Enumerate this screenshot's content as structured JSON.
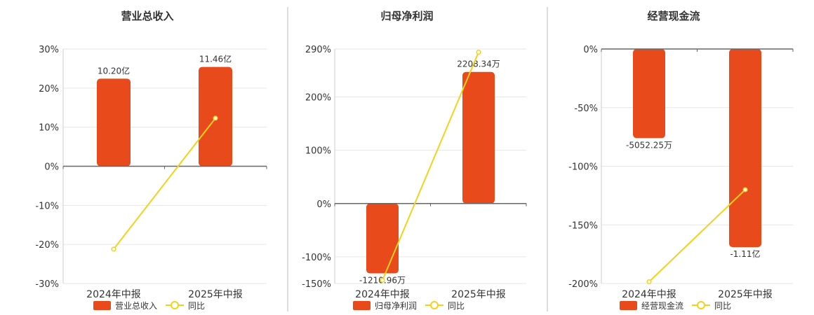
{
  "colors": {
    "bar": "#E84A1C",
    "line": "#F2D21B",
    "axis": "#666666",
    "grid": "#E6E6E6",
    "text": "#333333",
    "divider": "#BBBBBB"
  },
  "chart_data": [
    {
      "type": "bar",
      "title": "营业总收入",
      "categories": [
        "2024年中报",
        "2025年中报"
      ],
      "ylim": [
        -30,
        30
      ],
      "yticks": [
        30,
        20,
        10,
        0,
        -10,
        -20,
        -30
      ],
      "tick_labels": [
        "30%",
        "20%",
        "10%",
        "0%",
        "-10%",
        "-20%",
        "-30%"
      ],
      "bar_scaled": [
        22.4,
        25.4
      ],
      "yoy": [
        -21.2,
        12.3
      ],
      "bar_labels": [
        "10.20亿",
        "11.46亿"
      ],
      "legend": {
        "bar": "营业总收入",
        "line": "同比"
      }
    },
    {
      "type": "bar",
      "title": "归母净利润",
      "categories": [
        "2024年中报",
        "2025年中报"
      ],
      "ylim": [
        -150,
        290
      ],
      "yticks": [
        290,
        200,
        100,
        0,
        -100,
        -150
      ],
      "tick_labels": [
        "290%",
        "200%",
        "100%",
        "0%",
        "-100%",
        "-150%"
      ],
      "bar_scaled": [
        -131,
        247
      ],
      "yoy": [
        -144,
        284
      ],
      "bar_labels": [
        "-1210.96万",
        "2208.34万"
      ],
      "legend": {
        "bar": "归母净利润",
        "line": "同比"
      }
    },
    {
      "type": "bar",
      "title": "经营现金流",
      "categories": [
        "2024年中报",
        "2025年中报"
      ],
      "ylim": [
        -200,
        0
      ],
      "yticks": [
        0,
        -50,
        -100,
        -150,
        -200
      ],
      "tick_labels": [
        "0%",
        "-50%",
        "-100%",
        "-150%",
        "-200%"
      ],
      "bar_scaled": [
        -76,
        -169
      ],
      "yoy": [
        -198.5,
        -120
      ],
      "bar_labels": [
        "-5052.25万",
        "-1.11亿"
      ],
      "legend": {
        "bar": "经营现金流",
        "line": "同比"
      }
    }
  ]
}
